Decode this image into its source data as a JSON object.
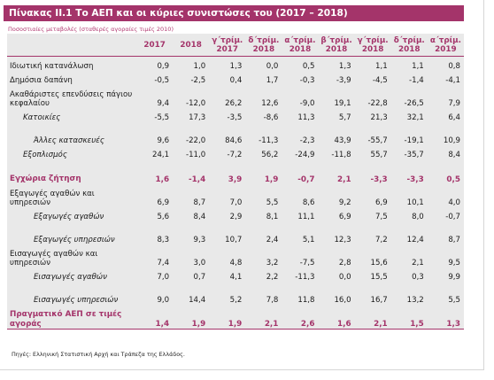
{
  "title": "Πίνακας ΙΙ.1 Το ΑΕΠ και οι κύριες συνιστώσες του (2017 – 2018)",
  "subtitle": "Ποσοστιαίες μεταβολές (σταθερές αγοραίες τιμές 2010)",
  "columns": [
    {
      "line1": "2017",
      "line2": ""
    },
    {
      "line1": "2018",
      "line2": ""
    },
    {
      "line1": "γ΄τρίμ.",
      "line2": "2017"
    },
    {
      "line1": "δ΄τρίμ.",
      "line2": "2018"
    },
    {
      "line1": "α΄τρίμ.",
      "line2": "2018"
    },
    {
      "line1": "β΄τρίμ.",
      "line2": "2018"
    },
    {
      "line1": "γ΄τρίμ.",
      "line2": "2018"
    },
    {
      "line1": "δ΄τρίμ.",
      "line2": "2018"
    },
    {
      "line1": "α΄τρίμ.",
      "line2": "2019"
    }
  ],
  "rows": [
    {
      "label": "Ιδιωτική κατανάλωση",
      "indent": 0,
      "highlight": false,
      "values": [
        "0,9",
        "1,0",
        "1,3",
        "0,0",
        "0,5",
        "1,3",
        "1,1",
        "1,1",
        "0,8"
      ]
    },
    {
      "label": "Δημόσια δαπάνη",
      "indent": 0,
      "highlight": false,
      "values": [
        "-0,5",
        "-2,5",
        "0,4",
        "1,7",
        "-0,3",
        "-3,9",
        "-4,5",
        "-1,4",
        "-4,1"
      ]
    },
    {
      "label": "Ακαθάριστες επενδύσεις πάγιου κεφαλαίου",
      "indent": 0,
      "highlight": false,
      "values": [
        "9,4",
        "-12,0",
        "26,2",
        "12,6",
        "-9,0",
        "19,1",
        "-22,8",
        "-26,5",
        "7,9"
      ]
    },
    {
      "label": "Κατοικίες",
      "indent": 1,
      "highlight": false,
      "values": [
        "-5,5",
        "17,3",
        "-3,5",
        "-8,6",
        "11,3",
        "5,7",
        "21,3",
        "32,1",
        "6,4"
      ]
    },
    {
      "label": "Άλλες κατασκευές",
      "indent": 2,
      "highlight": false,
      "values": [
        "9,6",
        "-22,0",
        "84,6",
        "-11,3",
        "-2,3",
        "43,9",
        "-55,7",
        "-19,1",
        "10,9"
      ]
    },
    {
      "label": "Εξοπλισμός",
      "indent": 1,
      "highlight": false,
      "values": [
        "24,1",
        "-11,0",
        "-7,2",
        "56,2",
        "-24,9",
        "-11,8",
        "55,7",
        "-35,7",
        "8,4"
      ]
    },
    {
      "label": "Εγχώρια ζήτηση",
      "indent": 0,
      "highlight": true,
      "values": [
        "1,6",
        "-1,4",
        "3,9",
        "1,9",
        "-0,7",
        "2,1",
        "-3,3",
        "-3,3",
        "0,5"
      ]
    },
    {
      "label": "Εξαγωγές αγαθών και υπηρεσιών",
      "indent": 0,
      "highlight": false,
      "values": [
        "6,9",
        "8,7",
        "7,0",
        "5,5",
        "8,6",
        "9,2",
        "6,9",
        "10,1",
        "4,0"
      ]
    },
    {
      "label": "Εξαγωγές αγαθών",
      "indent": 2,
      "highlight": false,
      "values": [
        "5,6",
        "8,4",
        "2,9",
        "8,1",
        "11,1",
        "6,9",
        "7,5",
        "8,0",
        "-0,7"
      ]
    },
    {
      "label": "Εξαγωγές υπηρεσιών",
      "indent": 2,
      "highlight": false,
      "values": [
        "8,3",
        "9,3",
        "10,7",
        "2,4",
        "5,1",
        "12,3",
        "7,2",
        "12,4",
        "8,7"
      ]
    },
    {
      "label": "Εισαγωγές αγαθών και υπηρεσιών",
      "indent": 0,
      "highlight": false,
      "values": [
        "7,4",
        "3,0",
        "4,8",
        "3,2",
        "-7,5",
        "2,8",
        "15,6",
        "2,1",
        "9,5"
      ]
    },
    {
      "label": "Εισαγωγές αγαθών",
      "indent": 2,
      "highlight": false,
      "values": [
        "7,0",
        "0,7",
        "4,1",
        "2,2",
        "-11,3",
        "0,0",
        "15,5",
        "0,3",
        "9,9"
      ]
    },
    {
      "label": "Εισαγωγές υπηρεσιών",
      "indent": 2,
      "highlight": false,
      "values": [
        "9,0",
        "14,4",
        "5,2",
        "7,8",
        "11,8",
        "16,0",
        "16,7",
        "13,2",
        "5,5"
      ]
    },
    {
      "label": "Πραγματικό ΑΕΠ σε τιμές αγοράς",
      "indent": 0,
      "highlight": true,
      "values": [
        "1,4",
        "1,9",
        "1,9",
        "2,1",
        "2,6",
        "1,6",
        "2,1",
        "1,5",
        "1,3"
      ]
    }
  ],
  "footer": "Πηγές: Ελληνική Στατιστική Αρχή και Τράπεζα της Ελλάδος.",
  "colors": {
    "accent": "#a4346a",
    "table_bg": "#e9e9e9"
  }
}
